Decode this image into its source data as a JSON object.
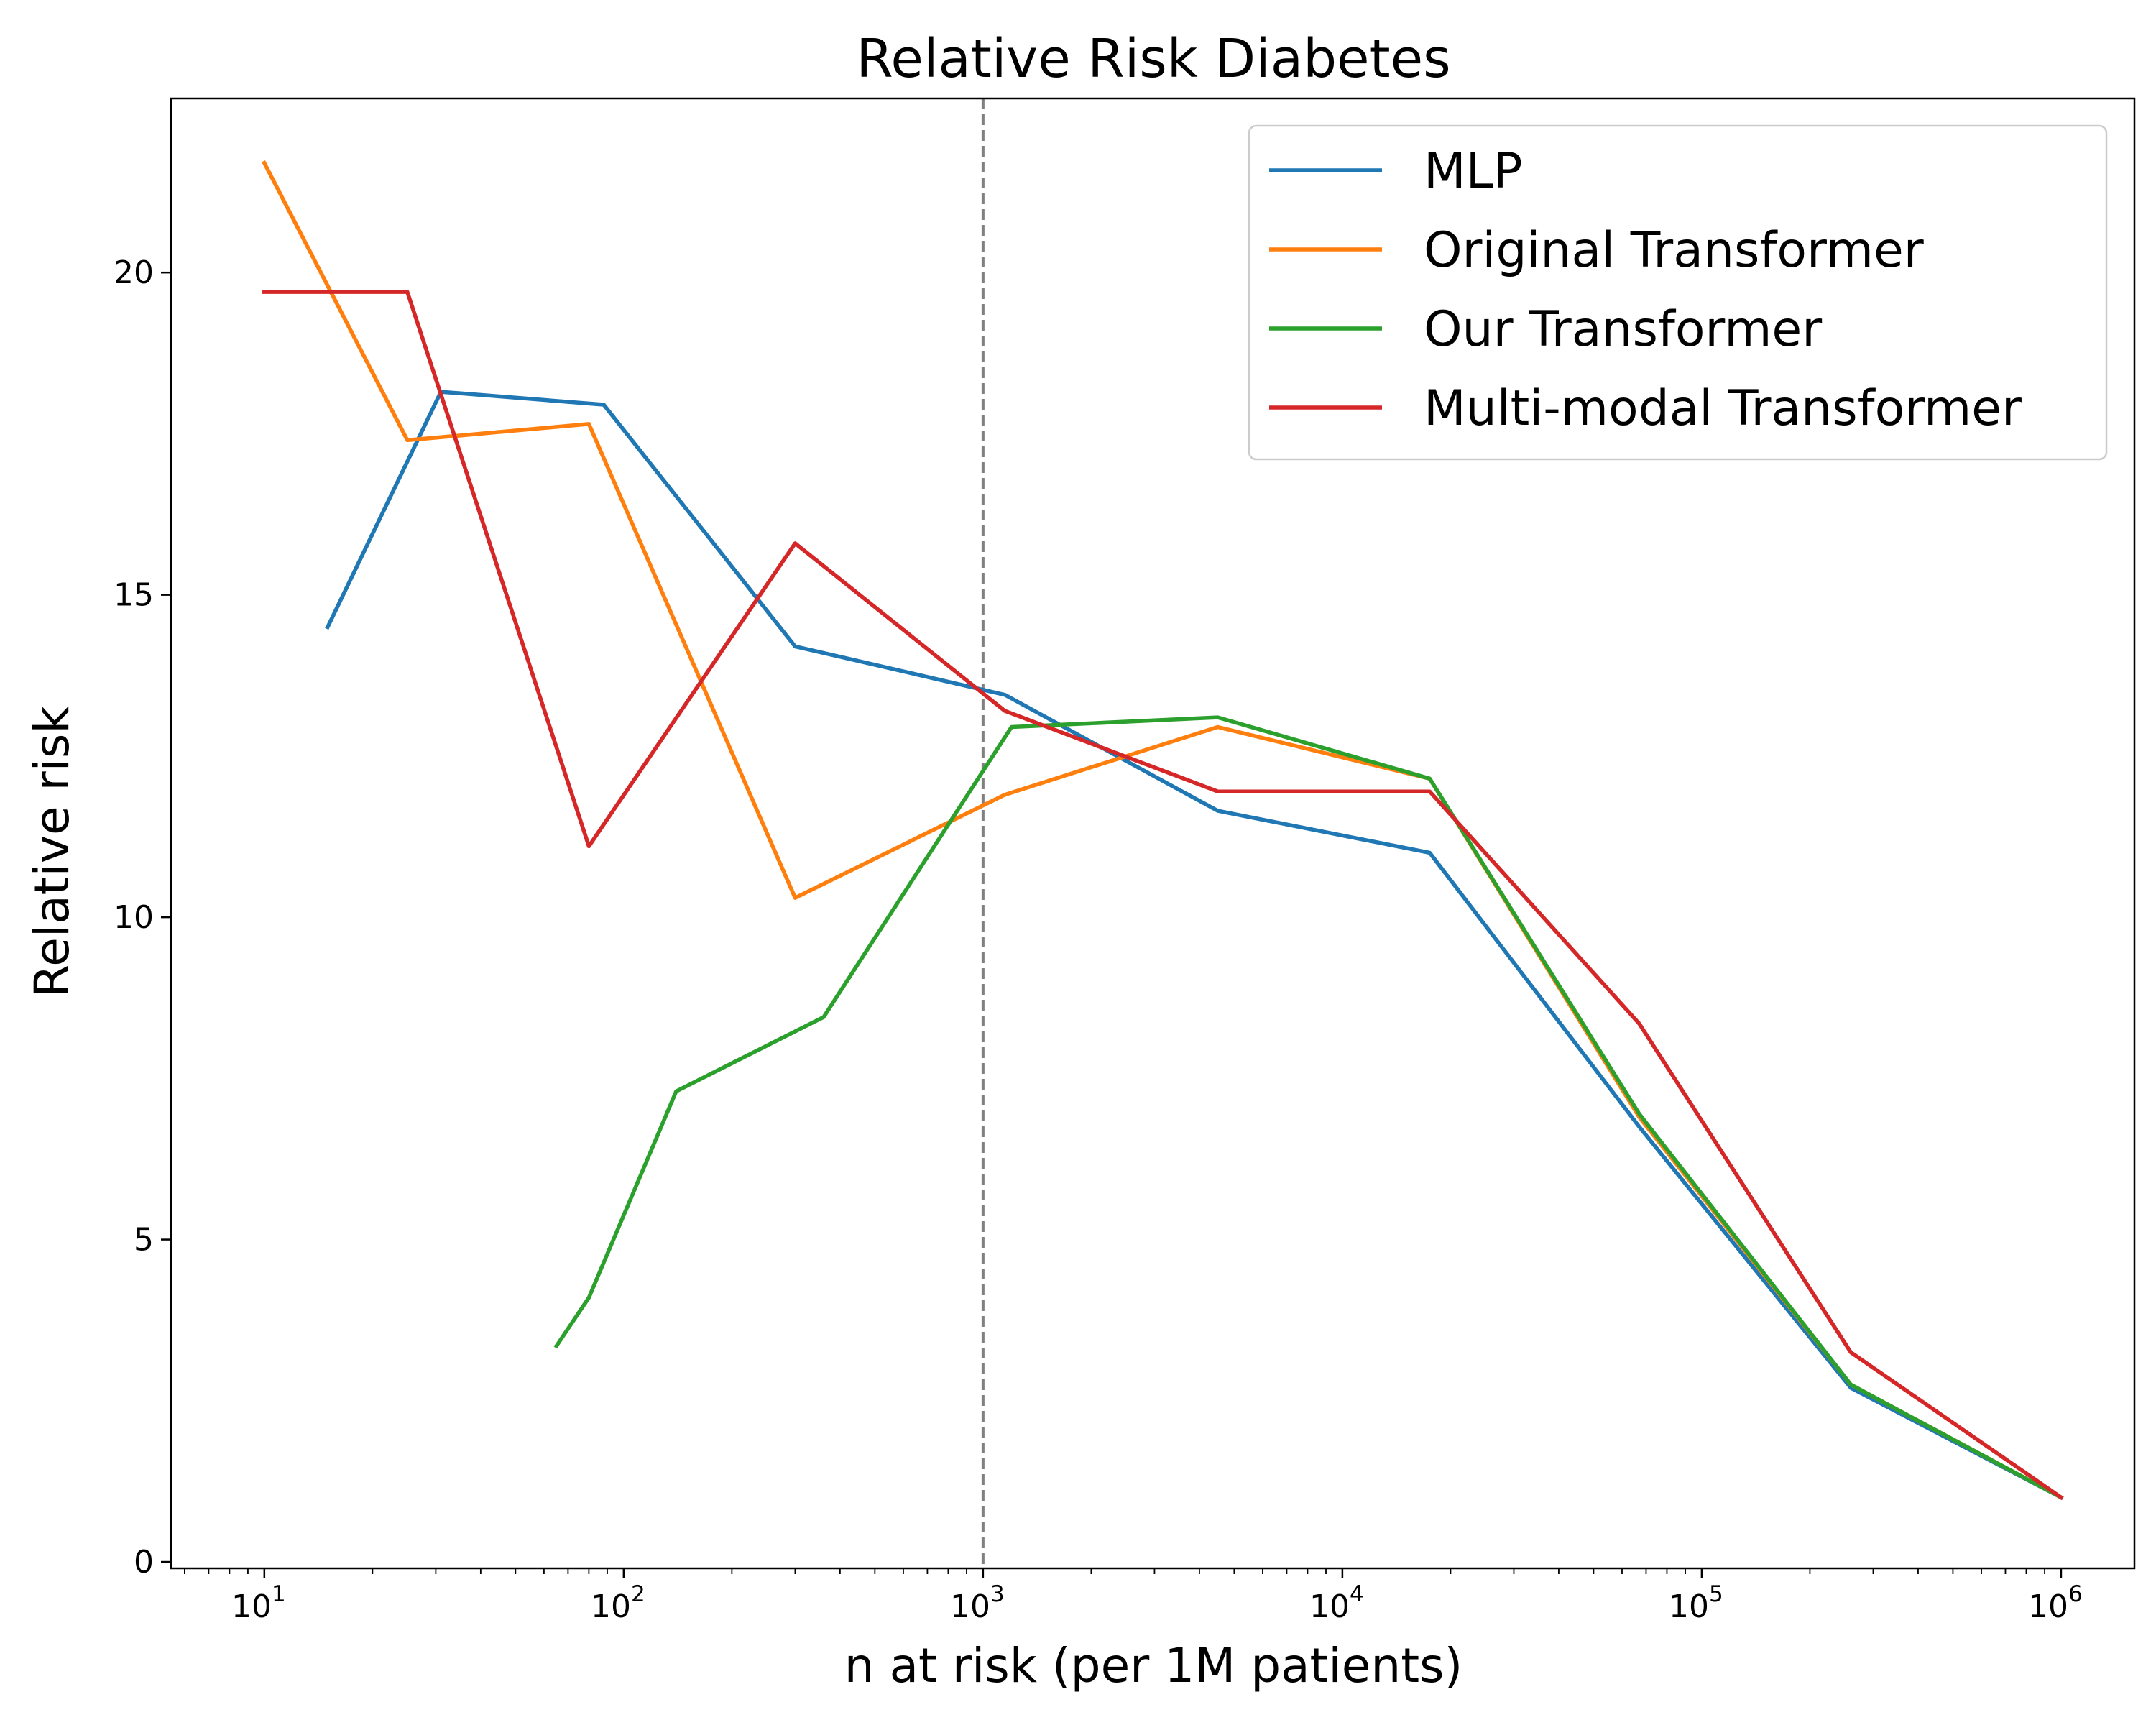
{
  "chart_data": {
    "type": "line",
    "title": "Relative Risk Diabetes",
    "xlabel": "n at risk (per 1M patients)",
    "ylabel": "Relative risk",
    "xscale": "log",
    "xlim": [
      5.5,
      1600000
    ],
    "ylim": [
      -0.1,
      22.7
    ],
    "yticks": [
      0,
      5,
      10,
      15,
      20
    ],
    "xticks": [
      {
        "value": 10,
        "base": "10",
        "exp": "1"
      },
      {
        "value": 100,
        "base": "10",
        "exp": "2"
      },
      {
        "value": 1000,
        "base": "10",
        "exp": "3"
      },
      {
        "value": 10000,
        "base": "10",
        "exp": "4"
      },
      {
        "value": 100000,
        "base": "10",
        "exp": "5"
      },
      {
        "value": 1000000,
        "base": "10",
        "exp": "6"
      }
    ],
    "vline": {
      "x": 1000,
      "style": "dashed",
      "color": "#808080"
    },
    "legend_position": "top-right",
    "grid": false,
    "series": [
      {
        "name": "MLP",
        "color": "#1f77b4",
        "points": [
          [
            15,
            14.5
          ],
          [
            31,
            18.15
          ],
          [
            88,
            17.95
          ],
          [
            300,
            14.2
          ],
          [
            1150,
            13.45
          ],
          [
            4500,
            11.65
          ],
          [
            17500,
            11.0
          ],
          [
            67000,
            6.75
          ],
          [
            260000,
            2.7
          ],
          [
            1000000,
            1.0
          ]
        ]
      },
      {
        "name": "Original Transformer",
        "color": "#ff7f0e",
        "points": [
          [
            10,
            21.7
          ],
          [
            25,
            17.4
          ],
          [
            80,
            17.65
          ],
          [
            300,
            10.3
          ],
          [
            1150,
            11.9
          ],
          [
            4500,
            12.95
          ],
          [
            17500,
            12.15
          ],
          [
            67000,
            6.9
          ],
          [
            260000,
            2.75
          ],
          [
            1000000,
            1.0
          ]
        ]
      },
      {
        "name": "Our Transformer",
        "color": "#2ca02c",
        "points": [
          [
            65,
            3.35
          ],
          [
            80,
            4.1
          ],
          [
            140,
            7.3
          ],
          [
            360,
            8.45
          ],
          [
            1200,
            12.95
          ],
          [
            4500,
            13.1
          ],
          [
            17500,
            12.15
          ],
          [
            67000,
            6.95
          ],
          [
            260000,
            2.75
          ],
          [
            1000000,
            1.0
          ]
        ]
      },
      {
        "name": "Multi-modal Transformer",
        "color": "#d62728",
        "points": [
          [
            10,
            19.7
          ],
          [
            25,
            19.7
          ],
          [
            80,
            11.1
          ],
          [
            300,
            15.8
          ],
          [
            1150,
            13.2
          ],
          [
            4500,
            11.95
          ],
          [
            17500,
            11.95
          ],
          [
            67000,
            8.35
          ],
          [
            260000,
            3.25
          ],
          [
            1000000,
            1.0
          ]
        ]
      }
    ]
  }
}
